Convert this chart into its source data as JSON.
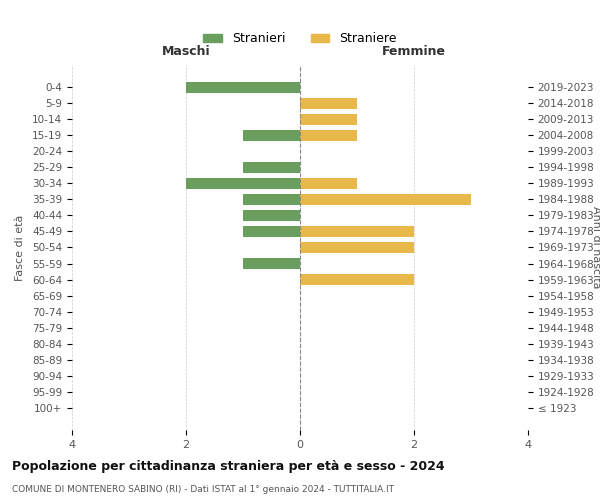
{
  "age_groups": [
    "100+",
    "95-99",
    "90-94",
    "85-89",
    "80-84",
    "75-79",
    "70-74",
    "65-69",
    "60-64",
    "55-59",
    "50-54",
    "45-49",
    "40-44",
    "35-39",
    "30-34",
    "25-29",
    "20-24",
    "15-19",
    "10-14",
    "5-9",
    "0-4"
  ],
  "birth_years": [
    "≤ 1923",
    "1924-1928",
    "1929-1933",
    "1934-1938",
    "1939-1943",
    "1944-1948",
    "1949-1953",
    "1954-1958",
    "1959-1963",
    "1964-1968",
    "1969-1973",
    "1974-1978",
    "1979-1983",
    "1984-1988",
    "1989-1993",
    "1994-1998",
    "1999-2003",
    "2004-2008",
    "2009-2013",
    "2014-2018",
    "2019-2023"
  ],
  "males": [
    0,
    0,
    0,
    0,
    0,
    0,
    0,
    0,
    0,
    1,
    0,
    1,
    1,
    1,
    2,
    1,
    0,
    1,
    0,
    0,
    2
  ],
  "females": [
    0,
    0,
    0,
    0,
    0,
    0,
    0,
    0,
    2,
    0,
    2,
    2,
    0,
    3,
    1,
    0,
    0,
    1,
    1,
    1,
    0
  ],
  "male_color": "#6A9E5E",
  "female_color": "#E8B84B",
  "title": "Popolazione per cittadinanza straniera per età e sesso - 2024",
  "subtitle": "COMUNE DI MONTENERO SABINO (RI) - Dati ISTAT al 1° gennaio 2024 - TUTTITALIA.IT",
  "legend_male": "Stranieri",
  "legend_female": "Straniere",
  "xlabel_left": "Maschi",
  "xlabel_right": "Femmine",
  "ylabel_left": "Fasce di età",
  "ylabel_right": "Anni di nascita",
  "xlim": 4,
  "background_color": "#ffffff",
  "grid_color": "#cccccc"
}
